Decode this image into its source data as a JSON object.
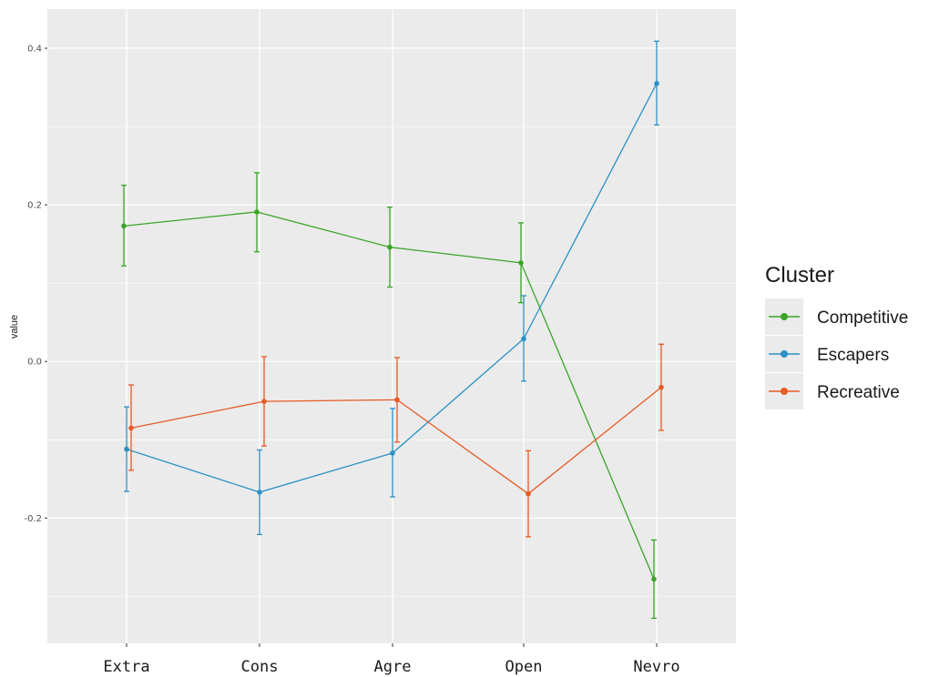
{
  "chart_data": {
    "type": "line",
    "title": "",
    "xlabel": "",
    "ylabel": "value",
    "categories": [
      "Extra",
      "Cons",
      "Agre",
      "Open",
      "Nevro"
    ],
    "ylim": [
      -0.36,
      0.45
    ],
    "yticks": [
      -0.2,
      0.0,
      0.2,
      0.4
    ],
    "ytick_labels": [
      "-0.2",
      "0.0",
      "0.2",
      "0.4"
    ],
    "grid": true,
    "legend": {
      "title": "Cluster",
      "position": "right"
    },
    "series": [
      {
        "name": "Competitive",
        "color": "#3aa428",
        "values": [
          0.173,
          0.191,
          0.146,
          0.126,
          -0.278
        ],
        "lower": [
          0.122,
          0.14,
          0.095,
          0.075,
          -0.328
        ],
        "upper": [
          0.225,
          0.241,
          0.197,
          0.177,
          -0.228
        ]
      },
      {
        "name": "Escapers",
        "color": "#2b91c4",
        "values": [
          -0.112,
          -0.167,
          -0.117,
          0.029,
          0.355
        ],
        "lower": [
          -0.166,
          -0.221,
          -0.173,
          -0.025,
          0.302
        ],
        "upper": [
          -0.058,
          -0.113,
          -0.06,
          0.084,
          0.409
        ]
      },
      {
        "name": "Recreative",
        "color": "#e55a25",
        "values": [
          -0.085,
          -0.051,
          -0.049,
          -0.169,
          -0.033
        ],
        "lower": [
          -0.139,
          -0.108,
          -0.103,
          -0.224,
          -0.088
        ],
        "upper": [
          -0.03,
          0.006,
          0.005,
          -0.114,
          0.022
        ]
      }
    ]
  }
}
